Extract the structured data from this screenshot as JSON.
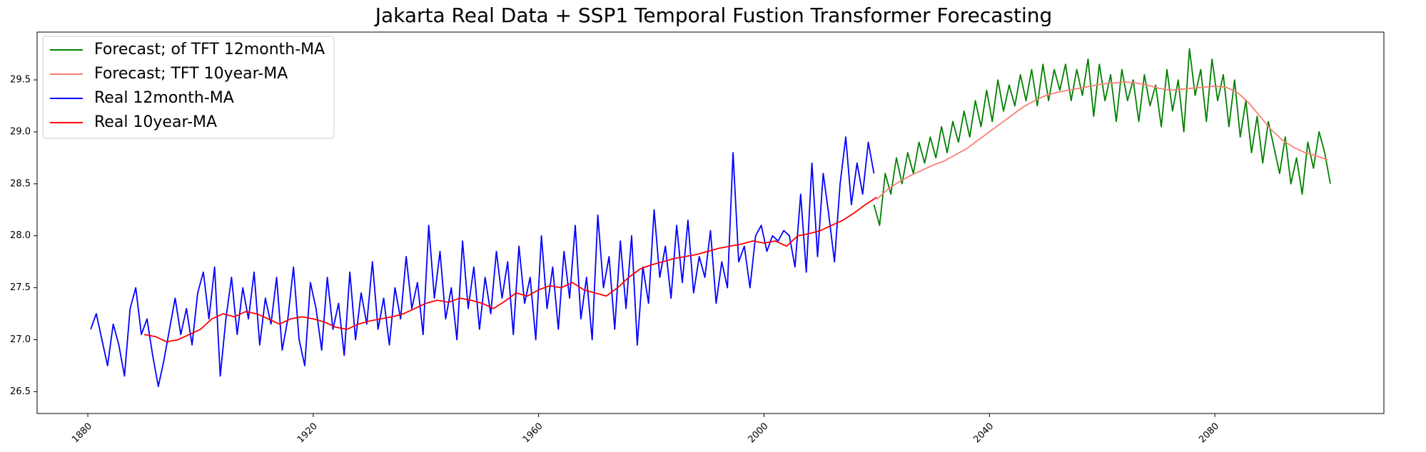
{
  "chart_data": {
    "type": "line",
    "title": "Jakarta Real Data + SSP1 Temporal Fustion Transformer Forecasting",
    "xlabel": "",
    "ylabel": "",
    "xlim": [
      1871,
      2110
    ],
    "ylim": [
      26.29,
      29.96
    ],
    "x_ticks": [
      1880,
      1920,
      1960,
      2000,
      2040,
      2080
    ],
    "y_ticks": [
      26.5,
      27.0,
      27.5,
      28.0,
      28.5,
      29.0,
      29.5
    ],
    "grid": false,
    "legend_position": "top-left",
    "series": [
      {
        "name": "Forecast; of TFT 12month-MA",
        "color": "#008000",
        "x": [
          2019.5,
          2020.5,
          2021.5,
          2022.5,
          2023.5,
          2024.5,
          2025.5,
          2026.5,
          2027.5,
          2028.5,
          2029.5,
          2030.5,
          2031.5,
          2032.5,
          2033.5,
          2034.5,
          2035.5,
          2036.5,
          2037.5,
          2038.5,
          2039.5,
          2040.5,
          2041.5,
          2042.5,
          2043.5,
          2044.5,
          2045.5,
          2046.5,
          2047.5,
          2048.5,
          2049.5,
          2050.5,
          2051.5,
          2052.5,
          2053.5,
          2054.5,
          2055.5,
          2056.5,
          2057.5,
          2058.5,
          2059.5,
          2060.5,
          2061.5,
          2062.5,
          2063.5,
          2064.5,
          2065.5,
          2066.5,
          2067.5,
          2068.5,
          2069.5,
          2070.5,
          2071.5,
          2072.5,
          2073.5,
          2074.5,
          2075.5,
          2076.5,
          2077.5,
          2078.5,
          2079.5,
          2080.5,
          2081.5,
          2082.5,
          2083.5,
          2084.5,
          2085.5,
          2086.5,
          2087.5,
          2088.5,
          2089.5,
          2090.5,
          2091.5,
          2092.5,
          2093.5,
          2094.5,
          2095.5,
          2096.5,
          2097.5,
          2098.5,
          2099.5,
          2100.5
        ],
        "y": [
          28.3,
          28.1,
          28.6,
          28.4,
          28.75,
          28.5,
          28.8,
          28.6,
          28.9,
          28.7,
          28.95,
          28.75,
          29.05,
          28.8,
          29.1,
          28.9,
          29.2,
          28.95,
          29.3,
          29.05,
          29.4,
          29.1,
          29.5,
          29.2,
          29.45,
          29.25,
          29.55,
          29.3,
          29.6,
          29.25,
          29.65,
          29.3,
          29.6,
          29.4,
          29.65,
          29.3,
          29.6,
          29.35,
          29.7,
          29.15,
          29.65,
          29.3,
          29.55,
          29.1,
          29.6,
          29.3,
          29.5,
          29.1,
          29.55,
          29.25,
          29.45,
          29.05,
          29.6,
          29.2,
          29.5,
          29.0,
          29.8,
          29.35,
          29.6,
          29.1,
          29.7,
          29.3,
          29.55,
          29.05,
          29.5,
          28.95,
          29.3,
          28.8,
          29.15,
          28.7,
          29.1,
          28.85,
          28.6,
          28.95,
          28.5,
          28.75,
          28.4,
          28.9,
          28.65,
          29.0,
          28.8,
          28.5
        ]
      },
      {
        "name": "Forecast; TFT 10year-MA",
        "color": "#fa8072",
        "x": [
          2020,
          2022,
          2024,
          2026,
          2028,
          2030,
          2032,
          2034,
          2036,
          2038,
          2040,
          2042,
          2044,
          2046,
          2048,
          2050,
          2052,
          2054,
          2056,
          2058,
          2060,
          2062,
          2064,
          2066,
          2068,
          2070,
          2072,
          2074,
          2076,
          2078,
          2080,
          2082,
          2084,
          2086,
          2088,
          2090,
          2092,
          2094,
          2096,
          2098,
          2100
        ],
        "y": [
          28.35,
          28.45,
          28.52,
          28.58,
          28.63,
          28.68,
          28.72,
          28.78,
          28.84,
          28.92,
          29.0,
          29.08,
          29.16,
          29.24,
          29.3,
          29.35,
          29.38,
          29.4,
          29.42,
          29.44,
          29.46,
          29.47,
          29.48,
          29.47,
          29.45,
          29.42,
          29.4,
          29.41,
          29.42,
          29.43,
          29.44,
          29.43,
          29.38,
          29.28,
          29.15,
          29.02,
          28.92,
          28.85,
          28.8,
          28.77,
          28.73
        ]
      },
      {
        "name": "Real 12month-MA",
        "color": "#0000ff",
        "x": [
          1880.5,
          1881.5,
          1882.5,
          1883.5,
          1884.5,
          1885.5,
          1886.5,
          1887.5,
          1888.5,
          1889.5,
          1890.5,
          1891.5,
          1892.5,
          1893.5,
          1894.5,
          1895.5,
          1896.5,
          1897.5,
          1898.5,
          1899.5,
          1900.5,
          1901.5,
          1902.5,
          1903.5,
          1904.5,
          1905.5,
          1906.5,
          1907.5,
          1908.5,
          1909.5,
          1910.5,
          1911.5,
          1912.5,
          1913.5,
          1914.5,
          1915.5,
          1916.5,
          1917.5,
          1918.5,
          1919.5,
          1920.5,
          1921.5,
          1922.5,
          1923.5,
          1924.5,
          1925.5,
          1926.5,
          1927.5,
          1928.5,
          1929.5,
          1930.5,
          1931.5,
          1932.5,
          1933.5,
          1934.5,
          1935.5,
          1936.5,
          1937.5,
          1938.5,
          1939.5,
          1940.5,
          1941.5,
          1942.5,
          1943.5,
          1944.5,
          1945.5,
          1946.5,
          1947.5,
          1948.5,
          1949.5,
          1950.5,
          1951.5,
          1952.5,
          1953.5,
          1954.5,
          1955.5,
          1956.5,
          1957.5,
          1958.5,
          1959.5,
          1960.5,
          1961.5,
          1962.5,
          1963.5,
          1964.5,
          1965.5,
          1966.5,
          1967.5,
          1968.5,
          1969.5,
          1970.5,
          1971.5,
          1972.5,
          1973.5,
          1974.5,
          1975.5,
          1976.5,
          1977.5,
          1978.5,
          1979.5,
          1980.5,
          1981.5,
          1982.5,
          1983.5,
          1984.5,
          1985.5,
          1986.5,
          1987.5,
          1988.5,
          1989.5,
          1990.5,
          1991.5,
          1992.5,
          1993.5,
          1994.5,
          1995.5,
          1996.5,
          1997.5,
          1998.5,
          1999.5,
          2000.5,
          2001.5,
          2002.5,
          2003.5,
          2004.5,
          2005.5,
          2006.5,
          2007.5,
          2008.5,
          2009.5,
          2010.5,
          2011.5,
          2012.5,
          2013.5,
          2014.5,
          2015.5,
          2016.5,
          2017.5,
          2018.5,
          2019.5
        ],
        "y": [
          27.1,
          27.25,
          27.0,
          26.75,
          27.15,
          26.95,
          26.65,
          27.3,
          27.5,
          27.05,
          27.2,
          26.85,
          26.55,
          26.8,
          27.1,
          27.4,
          27.05,
          27.3,
          26.95,
          27.45,
          27.65,
          27.2,
          27.7,
          26.65,
          27.2,
          27.6,
          27.05,
          27.5,
          27.2,
          27.65,
          26.95,
          27.4,
          27.15,
          27.6,
          26.9,
          27.2,
          27.7,
          27.0,
          26.75,
          27.55,
          27.3,
          26.9,
          27.6,
          27.1,
          27.35,
          26.85,
          27.65,
          27.0,
          27.45,
          27.15,
          27.75,
          27.1,
          27.4,
          26.95,
          27.5,
          27.2,
          27.8,
          27.3,
          27.55,
          27.05,
          28.1,
          27.4,
          27.85,
          27.2,
          27.5,
          27.0,
          27.95,
          27.3,
          27.7,
          27.1,
          27.6,
          27.25,
          27.85,
          27.4,
          27.75,
          27.05,
          27.9,
          27.35,
          27.6,
          27.0,
          28.0,
          27.3,
          27.7,
          27.1,
          27.85,
          27.4,
          28.1,
          27.2,
          27.6,
          27.0,
          28.2,
          27.5,
          27.8,
          27.1,
          27.95,
          27.3,
          28.0,
          26.95,
          27.7,
          27.35,
          28.25,
          27.6,
          27.9,
          27.4,
          28.1,
          27.55,
          28.15,
          27.45,
          27.8,
          27.6,
          28.05,
          27.35,
          27.75,
          27.5,
          28.8,
          27.75,
          27.9,
          27.5,
          28.0,
          28.1,
          27.85,
          28.0,
          27.95,
          28.05,
          28.0,
          27.7,
          28.4,
          27.65,
          28.7,
          27.8,
          28.6,
          28.2,
          27.75,
          28.5,
          28.95,
          28.3,
          28.7,
          28.4,
          28.9,
          28.6
        ]
      },
      {
        "name": "Real 10year-MA",
        "color": "#ff0000",
        "x": [
          1890,
          1892,
          1894,
          1896,
          1898,
          1900,
          1902,
          1904,
          1906,
          1908,
          1910,
          1912,
          1914,
          1916,
          1918,
          1920,
          1922,
          1924,
          1926,
          1928,
          1930,
          1932,
          1934,
          1936,
          1938,
          1940,
          1942,
          1944,
          1946,
          1948,
          1950,
          1952,
          1954,
          1956,
          1958,
          1960,
          1962,
          1964,
          1966,
          1968,
          1970,
          1972,
          1974,
          1976,
          1978,
          1980,
          1982,
          1984,
          1986,
          1988,
          1990,
          1992,
          1994,
          1996,
          1998,
          2000,
          2002,
          2004,
          2006,
          2008,
          2010,
          2012,
          2014,
          2016,
          2018,
          2020
        ],
        "y": [
          27.05,
          27.03,
          26.98,
          27.0,
          27.05,
          27.1,
          27.2,
          27.25,
          27.22,
          27.27,
          27.25,
          27.2,
          27.15,
          27.2,
          27.22,
          27.2,
          27.17,
          27.12,
          27.1,
          27.15,
          27.18,
          27.2,
          27.22,
          27.25,
          27.3,
          27.35,
          27.38,
          27.36,
          27.4,
          27.38,
          27.35,
          27.3,
          27.37,
          27.45,
          27.42,
          27.48,
          27.52,
          27.5,
          27.55,
          27.48,
          27.45,
          27.42,
          27.5,
          27.6,
          27.68,
          27.72,
          27.75,
          27.78,
          27.8,
          27.82,
          27.85,
          27.88,
          27.9,
          27.92,
          27.95,
          27.93,
          27.95,
          27.9,
          28.0,
          28.02,
          28.05,
          28.1,
          28.15,
          28.22,
          28.3,
          28.37
        ]
      }
    ]
  }
}
